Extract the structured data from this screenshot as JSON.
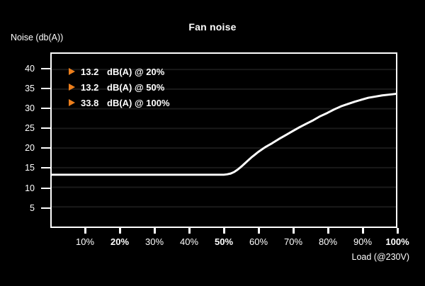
{
  "title": "Fan noise",
  "y_axis_label": "Noise (db(A))",
  "x_axis_label": "Load (@230V)",
  "legend": [
    {
      "marker": "triangle-right-icon",
      "value": "13.2",
      "label": "dB(A) @ 20%"
    },
    {
      "marker": "triangle-right-icon",
      "value": "13.2",
      "label": "dB(A) @ 50%"
    },
    {
      "marker": "triangle-right-icon",
      "value": "33.8",
      "label": "dB(A) @ 100%"
    }
  ],
  "colors": {
    "background": "#000000",
    "text": "#ffffff",
    "curve": "#ffffff",
    "grid": "#1a1a1a",
    "axis": "#ffffff",
    "accent_orange": "#ed7f1c"
  },
  "chart_data": {
    "type": "line",
    "title": "Fan noise",
    "xlabel": "Load (@230V)",
    "ylabel": "Noise (db(A))",
    "xlim": [
      0,
      100
    ],
    "ylim": [
      0,
      44
    ],
    "grid": "horizontal",
    "legend_position": "top-left-inside",
    "y_ticks": [
      40,
      35,
      30,
      25,
      20,
      15,
      10,
      5
    ],
    "x_ticks": [
      {
        "pct": 10,
        "label": "10%",
        "bold": false
      },
      {
        "pct": 20,
        "label": "20%",
        "bold": true
      },
      {
        "pct": 30,
        "label": "30%",
        "bold": false
      },
      {
        "pct": 40,
        "label": "40%",
        "bold": false
      },
      {
        "pct": 50,
        "label": "50%",
        "bold": true
      },
      {
        "pct": 60,
        "label": "60%",
        "bold": false
      },
      {
        "pct": 70,
        "label": "70%",
        "bold": false
      },
      {
        "pct": 80,
        "label": "80%",
        "bold": false
      },
      {
        "pct": 90,
        "label": "90%",
        "bold": false
      },
      {
        "pct": 100,
        "label": "100%",
        "bold": true
      }
    ],
    "series": [
      {
        "name": "fan-noise-db",
        "points": [
          [
            0,
            13.2
          ],
          [
            10,
            13.2
          ],
          [
            20,
            13.2
          ],
          [
            30,
            13.2
          ],
          [
            40,
            13.2
          ],
          [
            50,
            13.2
          ],
          [
            51,
            13.3
          ],
          [
            52,
            13.5
          ],
          [
            53,
            13.9
          ],
          [
            54,
            14.5
          ],
          [
            55,
            15.2
          ],
          [
            56,
            16.0
          ],
          [
            57,
            16.8
          ],
          [
            58,
            17.6
          ],
          [
            59,
            18.3
          ],
          [
            60,
            19.0
          ],
          [
            62,
            20.2
          ],
          [
            64,
            21.2
          ],
          [
            66,
            22.3
          ],
          [
            68,
            23.3
          ],
          [
            70,
            24.3
          ],
          [
            72,
            25.3
          ],
          [
            74,
            26.2
          ],
          [
            76,
            27.1
          ],
          [
            78,
            28.1
          ],
          [
            80,
            28.9
          ],
          [
            82,
            29.8
          ],
          [
            84,
            30.6
          ],
          [
            86,
            31.2
          ],
          [
            88,
            31.8
          ],
          [
            90,
            32.3
          ],
          [
            92,
            32.8
          ],
          [
            94,
            33.1
          ],
          [
            96,
            33.4
          ],
          [
            98,
            33.6
          ],
          [
            100,
            33.8
          ]
        ]
      }
    ],
    "annotations": [
      "13.2 dB(A) @ 20%",
      "13.2 dB(A) @ 50%",
      "33.8 dB(A) @ 100%"
    ]
  }
}
